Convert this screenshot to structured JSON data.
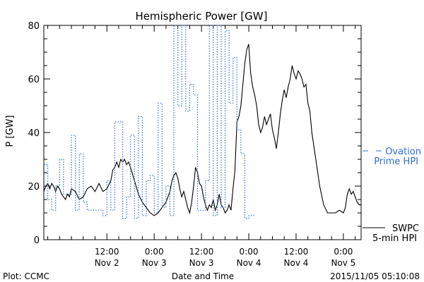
{
  "chart_data": {
    "type": "line",
    "title": "Hemispheric Power [GW]",
    "ylabel": "P [GW]",
    "xlabel": "Date and Time",
    "ylim": [
      0,
      80
    ],
    "yticks": [
      0,
      20,
      40,
      60,
      80
    ],
    "xticks": [
      {
        "time": "2015-11-02T12:00",
        "label": "12:00",
        "date": "Nov 2"
      },
      {
        "time": "2015-11-03T00:00",
        "label": "0:00",
        "date": "Nov 3"
      },
      {
        "time": "2015-11-03T12:00",
        "label": "12:00",
        "date": "Nov 3"
      },
      {
        "time": "2015-11-04T00:00",
        "label": "0:00",
        "date": "Nov 4"
      },
      {
        "time": "2015-11-04T12:00",
        "label": "12:00",
        "date": "Nov 4"
      },
      {
        "time": "2015-11-05T00:00",
        "label": "0:00",
        "date": "Nov 5"
      }
    ],
    "xlim": [
      "2015-11-01T20:00",
      "2015-11-05T04:30"
    ],
    "grid": false,
    "series": [
      {
        "name": "SWPC 5-min HPI",
        "color": "#000000",
        "style": "solid",
        "points": [
          [
            "2015-11-01T20:00",
            18
          ],
          [
            "2015-11-01T20:30",
            20
          ],
          [
            "2015-11-01T21:00",
            21
          ],
          [
            "2015-11-01T21:30",
            19
          ],
          [
            "2015-11-01T22:00",
            21
          ],
          [
            "2015-11-01T22:30",
            20
          ],
          [
            "2015-11-01T23:00",
            18
          ],
          [
            "2015-11-01T23:30",
            20
          ],
          [
            "2015-11-02T00:00",
            19
          ],
          [
            "2015-11-02T00:30",
            17
          ],
          [
            "2015-11-02T01:00",
            16
          ],
          [
            "2015-11-02T01:30",
            15
          ],
          [
            "2015-11-02T02:00",
            17
          ],
          [
            "2015-11-02T02:30",
            16
          ],
          [
            "2015-11-02T03:00",
            19
          ],
          [
            "2015-11-02T04:00",
            18
          ],
          [
            "2015-11-02T05:00",
            15
          ],
          [
            "2015-11-02T06:00",
            16
          ],
          [
            "2015-11-02T07:00",
            19
          ],
          [
            "2015-11-02T08:00",
            20
          ],
          [
            "2015-11-02T09:00",
            18
          ],
          [
            "2015-11-02T10:00",
            21
          ],
          [
            "2015-11-02T11:00",
            18
          ],
          [
            "2015-11-02T12:00",
            19
          ],
          [
            "2015-11-02T13:00",
            22
          ],
          [
            "2015-11-02T13:30",
            26
          ],
          [
            "2015-11-02T14:00",
            27
          ],
          [
            "2015-11-02T14:30",
            29
          ],
          [
            "2015-11-02T15:00",
            27
          ],
          [
            "2015-11-02T15:30",
            30
          ],
          [
            "2015-11-02T16:00",
            29
          ],
          [
            "2015-11-02T16:30",
            30
          ],
          [
            "2015-11-02T17:00",
            28
          ],
          [
            "2015-11-02T17:30",
            29
          ],
          [
            "2015-11-02T18:00",
            27
          ],
          [
            "2015-11-02T19:00",
            22
          ],
          [
            "2015-11-02T20:00",
            17
          ],
          [
            "2015-11-02T21:00",
            14
          ],
          [
            "2015-11-02T22:00",
            12
          ],
          [
            "2015-11-02T23:00",
            10
          ],
          [
            "2015-11-03T00:00",
            9
          ],
          [
            "2015-11-03T01:00",
            10
          ],
          [
            "2015-11-03T02:00",
            12
          ],
          [
            "2015-11-03T03:00",
            14
          ],
          [
            "2015-11-03T04:00",
            18
          ],
          [
            "2015-11-03T04:30",
            22
          ],
          [
            "2015-11-03T05:00",
            24
          ],
          [
            "2015-11-03T05:30",
            25
          ],
          [
            "2015-11-03T06:00",
            23
          ],
          [
            "2015-11-03T06:30",
            19
          ],
          [
            "2015-11-03T07:00",
            16
          ],
          [
            "2015-11-03T07:30",
            18
          ],
          [
            "2015-11-03T08:00",
            15
          ],
          [
            "2015-11-03T08:30",
            12
          ],
          [
            "2015-11-03T09:00",
            10
          ],
          [
            "2015-11-03T09:30",
            14
          ],
          [
            "2015-11-03T10:00",
            20
          ],
          [
            "2015-11-03T10:30",
            27
          ],
          [
            "2015-11-03T11:00",
            25
          ],
          [
            "2015-11-03T11:30",
            21
          ],
          [
            "2015-11-03T12:00",
            20
          ],
          [
            "2015-11-03T12:30",
            16
          ],
          [
            "2015-11-03T13:00",
            13
          ],
          [
            "2015-11-03T13:30",
            11
          ],
          [
            "2015-11-03T14:00",
            13
          ],
          [
            "2015-11-03T14:30",
            12
          ],
          [
            "2015-11-03T15:00",
            15
          ],
          [
            "2015-11-03T15:30",
            11
          ],
          [
            "2015-11-03T16:00",
            13
          ],
          [
            "2015-11-03T16:30",
            17
          ],
          [
            "2015-11-03T17:00",
            13
          ],
          [
            "2015-11-03T17:30",
            12
          ],
          [
            "2015-11-03T18:00",
            10
          ],
          [
            "2015-11-03T18:30",
            11
          ],
          [
            "2015-11-03T19:00",
            13
          ],
          [
            "2015-11-03T19:30",
            11
          ],
          [
            "2015-11-03T20:00",
            19
          ],
          [
            "2015-11-03T20:30",
            26
          ],
          [
            "2015-11-03T21:00",
            44
          ],
          [
            "2015-11-03T21:30",
            46
          ],
          [
            "2015-11-03T22:00",
            50
          ],
          [
            "2015-11-03T22:30",
            58
          ],
          [
            "2015-11-03T23:00",
            66
          ],
          [
            "2015-11-03T23:30",
            71
          ],
          [
            "2015-11-04T00:00",
            73
          ],
          [
            "2015-11-04T00:15",
            67
          ],
          [
            "2015-11-04T00:30",
            62
          ],
          [
            "2015-11-04T01:00",
            57
          ],
          [
            "2015-11-04T01:30",
            54
          ],
          [
            "2015-11-04T02:00",
            50
          ],
          [
            "2015-11-04T02:30",
            43
          ],
          [
            "2015-11-04T03:00",
            40
          ],
          [
            "2015-11-04T03:30",
            42
          ],
          [
            "2015-11-04T04:00",
            46
          ],
          [
            "2015-11-04T04:30",
            43
          ],
          [
            "2015-11-04T05:00",
            45
          ],
          [
            "2015-11-04T05:30",
            47
          ],
          [
            "2015-11-04T06:00",
            41
          ],
          [
            "2015-11-04T06:30",
            38
          ],
          [
            "2015-11-04T07:00",
            34
          ],
          [
            "2015-11-04T07:30",
            40
          ],
          [
            "2015-11-04T08:00",
            47
          ],
          [
            "2015-11-04T08:30",
            52
          ],
          [
            "2015-11-04T09:00",
            56
          ],
          [
            "2015-11-04T09:30",
            53
          ],
          [
            "2015-11-04T10:00",
            57
          ],
          [
            "2015-11-04T10:30",
            60
          ],
          [
            "2015-11-04T11:00",
            65
          ],
          [
            "2015-11-04T11:30",
            62
          ],
          [
            "2015-11-04T12:00",
            60
          ],
          [
            "2015-11-04T12:30",
            63
          ],
          [
            "2015-11-04T13:00",
            62
          ],
          [
            "2015-11-04T13:30",
            60
          ],
          [
            "2015-11-04T14:00",
            57
          ],
          [
            "2015-11-04T14:30",
            58
          ],
          [
            "2015-11-04T15:00",
            51
          ],
          [
            "2015-11-04T15:30",
            48
          ],
          [
            "2015-11-04T16:00",
            40
          ],
          [
            "2015-11-04T17:00",
            30
          ],
          [
            "2015-11-04T18:00",
            20
          ],
          [
            "2015-11-04T19:00",
            13
          ],
          [
            "2015-11-04T20:00",
            10
          ],
          [
            "2015-11-04T21:00",
            10
          ],
          [
            "2015-11-04T22:00",
            10
          ],
          [
            "2015-11-04T23:00",
            11
          ],
          [
            "2015-11-05T00:00",
            10
          ],
          [
            "2015-11-05T00:30",
            12
          ],
          [
            "2015-11-05T01:00",
            17
          ],
          [
            "2015-11-05T01:30",
            19
          ],
          [
            "2015-11-05T02:00",
            17
          ],
          [
            "2015-11-05T02:30",
            18
          ],
          [
            "2015-11-05T03:00",
            16
          ],
          [
            "2015-11-05T03:30",
            14
          ],
          [
            "2015-11-05T04:00",
            13
          ],
          [
            "2015-11-05T04:30",
            13
          ]
        ]
      },
      {
        "name": "Ovation Prime HPI",
        "color": "#2e6fd0",
        "style": "dotted-step",
        "points": [
          [
            "2015-11-01T20:00",
            28
          ],
          [
            "2015-11-01T21:00",
            15
          ],
          [
            "2015-11-01T22:00",
            11
          ],
          [
            "2015-11-01T23:00",
            20
          ],
          [
            "2015-11-02T00:00",
            30
          ],
          [
            "2015-11-02T01:00",
            17
          ],
          [
            "2015-11-02T03:00",
            39
          ],
          [
            "2015-11-02T04:00",
            11
          ],
          [
            "2015-11-02T05:00",
            32
          ],
          [
            "2015-11-02T06:00",
            14
          ],
          [
            "2015-11-02T07:00",
            11
          ],
          [
            "2015-11-02T10:00",
            11
          ],
          [
            "2015-11-02T11:00",
            9
          ],
          [
            "2015-11-02T12:00",
            22
          ],
          [
            "2015-11-02T13:00",
            11
          ],
          [
            "2015-11-02T14:00",
            44
          ],
          [
            "2015-11-02T16:00",
            8
          ],
          [
            "2015-11-02T17:00",
            16
          ],
          [
            "2015-11-02T18:00",
            39
          ],
          [
            "2015-11-02T19:00",
            8
          ],
          [
            "2015-11-02T20:00",
            46
          ],
          [
            "2015-11-02T21:00",
            9
          ],
          [
            "2015-11-02T22:00",
            22
          ],
          [
            "2015-11-02T23:00",
            24
          ],
          [
            "2015-11-03T00:00",
            10
          ],
          [
            "2015-11-03T01:00",
            51
          ],
          [
            "2015-11-03T02:00",
            12
          ],
          [
            "2015-11-03T03:00",
            20
          ],
          [
            "2015-11-03T04:00",
            9
          ],
          [
            "2015-11-03T05:00",
            80
          ],
          [
            "2015-11-03T06:00",
            50
          ],
          [
            "2015-11-03T07:00",
            80
          ],
          [
            "2015-11-03T08:00",
            48
          ],
          [
            "2015-11-03T09:00",
            58
          ],
          [
            "2015-11-03T10:00",
            54
          ],
          [
            "2015-11-03T11:00",
            11
          ],
          [
            "2015-11-03T13:00",
            22
          ],
          [
            "2015-11-03T14:00",
            80
          ],
          [
            "2015-11-03T15:00",
            9
          ],
          [
            "2015-11-03T16:00",
            80
          ],
          [
            "2015-11-03T17:00",
            12
          ],
          [
            "2015-11-03T18:00",
            78
          ],
          [
            "2015-11-03T19:00",
            51
          ],
          [
            "2015-11-03T20:00",
            68
          ],
          [
            "2015-11-03T21:00",
            41
          ],
          [
            "2015-11-03T22:00",
            32
          ],
          [
            "2015-11-03T23:00",
            8
          ],
          [
            "2015-11-04T00:00",
            9
          ]
        ]
      }
    ],
    "legend": [
      {
        "text": "SWPC",
        "line2": "5-min HPI",
        "style": "solid",
        "color": "#000000"
      },
      {
        "text": "Ovation",
        "line2": "Prime HPI",
        "style": "dashed",
        "color": "#2e6fd0"
      }
    ],
    "annotations": {
      "credit": "Plot: CCMC",
      "timestamp": "2015/11/05 05:10:08"
    }
  }
}
